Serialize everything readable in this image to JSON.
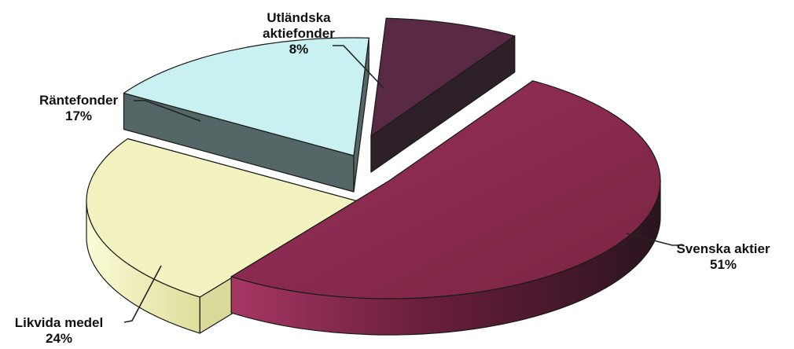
{
  "chart_data": {
    "type": "pie",
    "variant": "3d-exploded",
    "title": "",
    "slices": [
      {
        "name": "Svenska aktier",
        "value": 51,
        "value_label": "51%",
        "color": "#8b2a4d",
        "side_color": "#5e1a33"
      },
      {
        "name": "Likvida medel",
        "value": 24,
        "value_label": "24%",
        "color": "#f3f3c2",
        "side_color": "#d9d99a"
      },
      {
        "name": "Räntefonder",
        "value": 17,
        "value_label": "17%",
        "color": "#c9f1f1",
        "side_color": "#556666"
      },
      {
        "name": "Utländska aktiefonder",
        "label_lines": [
          "Utländska",
          "aktiefonder"
        ],
        "value": 8,
        "value_label": "8%",
        "color": "#5a2a45",
        "side_color": "#2e2028"
      }
    ],
    "legend": "none"
  }
}
